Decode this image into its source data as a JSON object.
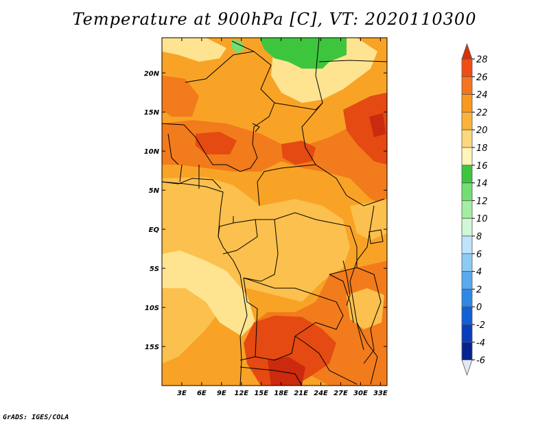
{
  "title": "Temperature at 900hPa [C], VT: 2020110300",
  "credit": "GrADS: IGES/COLA",
  "map": {
    "type": "filled-contour-map",
    "variable": "Temperature at 900hPa",
    "units": "C",
    "valid_time": "2020110300",
    "lon_range": [
      0,
      34
    ],
    "lat_range": [
      -20,
      24.5
    ],
    "x_ticks": [
      "3E",
      "6E",
      "9E",
      "12E",
      "15E",
      "18E",
      "21E",
      "24E",
      "27E",
      "30E",
      "33E"
    ],
    "x_tick_values": [
      3,
      6,
      9,
      12,
      15,
      18,
      21,
      24,
      27,
      30,
      33
    ],
    "y_ticks": [
      "20N",
      "15N",
      "10N",
      "5N",
      "EQ",
      "5S",
      "10S",
      "15S"
    ],
    "y_tick_values": [
      20,
      15,
      10,
      5,
      0,
      -5,
      -10,
      -15
    ],
    "colors": {
      "c18_20": "#fee491",
      "c20_22": "#fbc04d",
      "c22_24": "#f8a326",
      "c24_26": "#f27b1c",
      "c26_28": "#e44a12",
      "c28": "#cc2a0e",
      "c14_16": "#3dc63d",
      "c12_14": "#72de72"
    }
  },
  "colorbar": {
    "labels": [
      "28",
      "26",
      "24",
      "22",
      "20",
      "18",
      "16",
      "14",
      "12",
      "10",
      "8",
      "6",
      "4",
      "2",
      "0",
      "-2",
      "-4",
      "-6"
    ],
    "colors": [
      "#d93009",
      "#ef4d14",
      "#f5751e",
      "#f79a1f",
      "#fbb33c",
      "#fdd77b",
      "#fff5b9",
      "#3dc63d",
      "#72de72",
      "#a3eea3",
      "#d0f8d6",
      "#bfe3fb",
      "#8dcbf7",
      "#5ba9ee",
      "#3088e4",
      "#1260d6",
      "#0a3dbc",
      "#06248f"
    ],
    "under_color": "#e6e6f8",
    "over_color": "#d93009"
  }
}
